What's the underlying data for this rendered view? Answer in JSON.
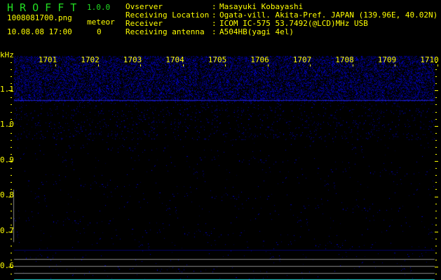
{
  "header": {
    "app_title": "H R O F F T",
    "version": "1.0.0",
    "filename": "1008081700.png",
    "datetime": "10.08.08 17:00",
    "meteor_label": "meteor",
    "meteor_count": "0"
  },
  "info": {
    "rows": [
      {
        "label": "Ovserver",
        "value": "Masayuki Kobayashi"
      },
      {
        "label": "Receiving Location",
        "value": "Ogata-vill. Akita-Pref. JAPAN (139.96E, 40.02N)"
      },
      {
        "label": "Receiver",
        "value": "ICOM IC-575 53.7492(@LCD)MHz USB"
      },
      {
        "label": "Receiving antenna",
        "value": "A504HB(yagi 4el)"
      }
    ]
  },
  "spectrogram": {
    "freq_unit": "kHz",
    "freq_labels": [
      "1.1",
      "1.0",
      "0.9",
      "0.8",
      "0.7",
      "0.6"
    ],
    "time_labels": [
      "1701",
      "1702",
      "1703",
      "1704",
      "1705",
      "1706",
      "1707",
      "1708",
      "1709",
      "1710"
    ],
    "colors": {
      "noise": "#2222cc",
      "labels": "#ffff00",
      "title": "#22dd22",
      "reference_lines": "#888888",
      "bottom_bar": "#22cccc"
    }
  }
}
